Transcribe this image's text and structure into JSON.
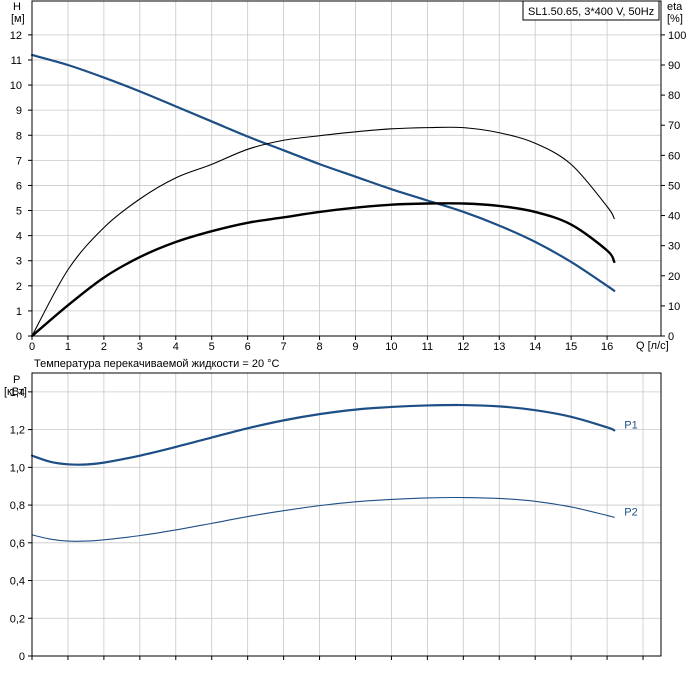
{
  "colors": {
    "dark_blue": "#1d4f86",
    "black": "#000000",
    "grid": "#c8c8c8"
  },
  "chart_data": [
    {
      "type": "line",
      "title": "SL1.50.65, 3*400 V, 50Hz",
      "xlabel": "Q [л/с]",
      "ylabel": {
        "name": "H",
        "unit": "[м]"
      },
      "y2label": {
        "name": "eta",
        "unit": "[%]"
      },
      "xlim": [
        0,
        17.5
      ],
      "ylim": [
        0,
        13.35
      ],
      "y2lim": [
        0,
        111.25
      ],
      "xticks": [
        0,
        1,
        2,
        3,
        4,
        5,
        6,
        7,
        8,
        9,
        10,
        11,
        12,
        13,
        14,
        15,
        16
      ],
      "xtick_labels": [
        "0",
        "1",
        "2",
        "3",
        "4",
        "5",
        "6",
        "7",
        "8",
        "9",
        "10",
        "11",
        "12",
        "13",
        "14",
        "15",
        "16"
      ],
      "yticks": [
        0,
        1,
        2,
        3,
        4,
        5,
        6,
        7,
        8,
        9,
        10,
        11,
        12
      ],
      "ytick_labels": [
        "0",
        "1",
        "2",
        "3",
        "4",
        "5",
        "6",
        "7",
        "8",
        "9",
        "10",
        "11",
        "12"
      ],
      "y2ticks": [
        0,
        10,
        20,
        30,
        40,
        50,
        60,
        70,
        80,
        90,
        100
      ],
      "y2tick_labels": [
        "0",
        "10",
        "20",
        "30",
        "40",
        "50",
        "60",
        "70",
        "80",
        "90",
        "100"
      ],
      "grid": true,
      "note": "Температура перекачиваемой жидкости = 20 °C",
      "series": [
        {
          "key": "head",
          "axis": "left",
          "color": "#1d4f86",
          "width": 2.2,
          "x": [
            0,
            1,
            2,
            3,
            4,
            5,
            6,
            7,
            8,
            9,
            10,
            11,
            12,
            13,
            14,
            15,
            16,
            16.2
          ],
          "y": [
            11.2,
            10.8,
            10.3,
            9.75,
            9.15,
            8.55,
            7.95,
            7.4,
            6.85,
            6.35,
            5.85,
            5.4,
            4.95,
            4.4,
            3.75,
            2.95,
            2.0,
            1.8
          ]
        },
        {
          "key": "eta",
          "axis": "right",
          "color": "#000000",
          "width": 1.1,
          "x": [
            0,
            1,
            2,
            3,
            4,
            5,
            6,
            7,
            8,
            9,
            10,
            11,
            12,
            13,
            14,
            15,
            16,
            16.2
          ],
          "y": [
            0,
            22,
            36,
            45.5,
            52.5,
            57,
            62,
            65,
            66.5,
            67.8,
            68.8,
            69.2,
            69.2,
            67.5,
            64,
            57,
            43,
            39
          ]
        },
        {
          "key": "eta_total",
          "axis": "right",
          "color": "#000000",
          "width": 2.4,
          "x": [
            0,
            1,
            2,
            3,
            4,
            5,
            6,
            7,
            8,
            9,
            10,
            11,
            12,
            13,
            14,
            15,
            16,
            16.2
          ],
          "y": [
            0,
            10.2,
            19.4,
            26.2,
            31.2,
            34.8,
            37.6,
            39.4,
            41.2,
            42.6,
            43.6,
            44,
            44,
            43.2,
            41.2,
            37,
            28.4,
            24.6
          ]
        }
      ]
    },
    {
      "type": "line",
      "xlabel": "",
      "ylabel": {
        "name": "P",
        "unit": "[кВт]"
      },
      "xlim": [
        0,
        17.5
      ],
      "ylim": [
        0,
        1.5
      ],
      "xticks": [
        0,
        1,
        2,
        3,
        4,
        5,
        6,
        7,
        8,
        9,
        10,
        11,
        12,
        13,
        14,
        15,
        16,
        17
      ],
      "yticks": [
        0,
        0.2,
        0.4,
        0.6,
        0.8,
        1.0,
        1.2,
        1.4
      ],
      "ytick_labels": [
        "0",
        "0,2",
        "0,4",
        "0,6",
        "0,8",
        "1,0",
        "1,2",
        "1,4"
      ],
      "grid": true,
      "series": [
        {
          "name": "P1",
          "color": "#1d4f86",
          "width": 2.2,
          "x": [
            0,
            0.5,
            1,
            1.5,
            2,
            3,
            4,
            5,
            6,
            7,
            8,
            9,
            10,
            11,
            12,
            13,
            14,
            15,
            16,
            16.2
          ],
          "y": [
            1.062,
            1.03,
            1.016,
            1.015,
            1.025,
            1.062,
            1.108,
            1.158,
            1.207,
            1.249,
            1.282,
            1.306,
            1.32,
            1.328,
            1.33,
            1.323,
            1.303,
            1.268,
            1.212,
            1.196
          ]
        },
        {
          "name": "P2",
          "color": "#1d4f86",
          "width": 1.1,
          "x": [
            0,
            0.5,
            1,
            1.5,
            2,
            3,
            4,
            5,
            6,
            7,
            8,
            9,
            10,
            11,
            12,
            13,
            14,
            15,
            16,
            16.2
          ],
          "y": [
            0.642,
            0.62,
            0.609,
            0.609,
            0.616,
            0.638,
            0.668,
            0.703,
            0.739,
            0.77,
            0.797,
            0.817,
            0.83,
            0.838,
            0.84,
            0.835,
            0.82,
            0.79,
            0.745,
            0.735
          ]
        }
      ]
    }
  ]
}
